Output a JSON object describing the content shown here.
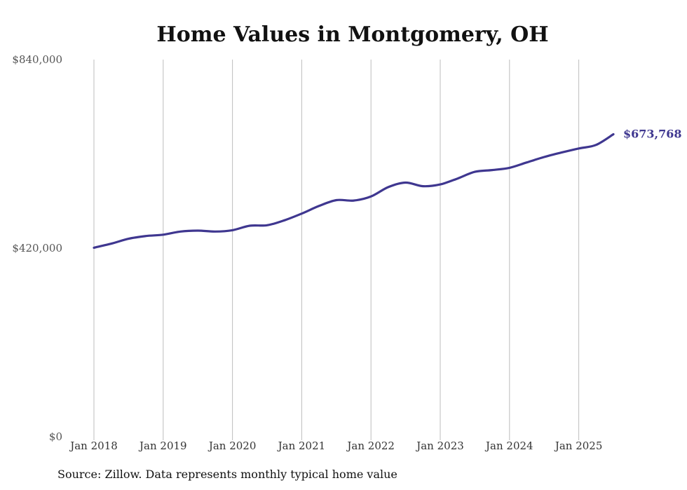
{
  "chart_data": {
    "type": "line",
    "title": "Home Values in Montgomery, OH",
    "xlabel": "",
    "ylabel": "",
    "ylim": [
      0,
      840000
    ],
    "y_ticks": [
      {
        "value": 0,
        "label": "$0"
      },
      {
        "value": 420000,
        "label": "$420,000"
      },
      {
        "value": 840000,
        "label": "$840,000"
      }
    ],
    "x_ticks": [
      {
        "value": "2018-01",
        "label": "Jan 2018"
      },
      {
        "value": "2019-01",
        "label": "Jan 2019"
      },
      {
        "value": "2020-01",
        "label": "Jan 2020"
      },
      {
        "value": "2021-01",
        "label": "Jan 2021"
      },
      {
        "value": "2022-01",
        "label": "Jan 2022"
      },
      {
        "value": "2023-01",
        "label": "Jan 2023"
      },
      {
        "value": "2024-01",
        "label": "Jan 2024"
      },
      {
        "value": "2025-01",
        "label": "Jan 2025"
      }
    ],
    "grid": "vertical",
    "series": [
      {
        "color": "#3f3790",
        "end_label": "$673,768",
        "x": [
          "2018-01",
          "2018-04",
          "2018-07",
          "2018-10",
          "2019-01",
          "2019-04",
          "2019-07",
          "2019-10",
          "2020-01",
          "2020-04",
          "2020-07",
          "2020-10",
          "2021-01",
          "2021-04",
          "2021-07",
          "2021-10",
          "2022-01",
          "2022-04",
          "2022-07",
          "2022-10",
          "2023-01",
          "2023-04",
          "2023-07",
          "2023-10",
          "2024-01",
          "2024-04",
          "2024-07",
          "2024-10",
          "2025-01",
          "2025-04",
          "2025-07"
        ],
        "y": [
          421000,
          430000,
          441000,
          447000,
          450000,
          457000,
          459000,
          457000,
          460000,
          470000,
          471000,
          482000,
          497000,
          514000,
          527000,
          526000,
          535000,
          556000,
          566000,
          558000,
          562000,
          575000,
          590000,
          594000,
          599000,
          611000,
          623000,
          633000,
          642000,
          650000,
          673768
        ]
      }
    ]
  },
  "source": "Source: Zillow. Data represents monthly typical home value"
}
